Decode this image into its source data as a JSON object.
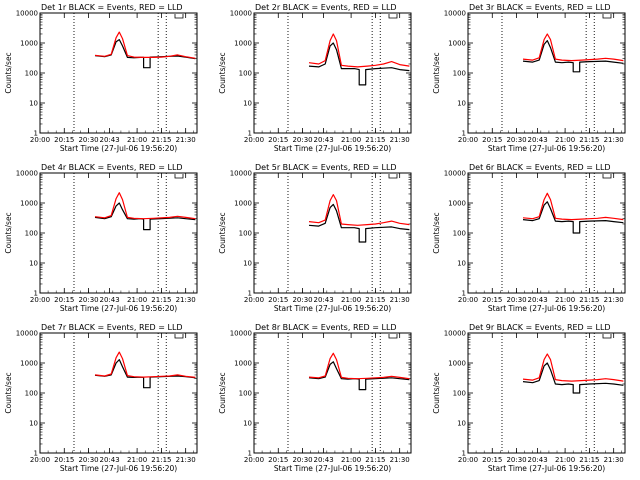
{
  "chart_data": {
    "type": "line",
    "layout": "3x3 grid",
    "xlabel": "Start Time (27-Jul-06 19:56:20)",
    "ylabel": "Counts/sec",
    "y_scale": "log",
    "ylim": [
      1,
      10000
    ],
    "yticks": [
      1,
      10,
      100,
      1000,
      10000
    ],
    "ytick_labels": [
      "1",
      "10",
      "100",
      "1000",
      "10000"
    ],
    "xlim": [
      "20:00",
      "21:37"
    ],
    "xtick_labels": [
      "20:00",
      "20:15",
      "20:30",
      "20:43",
      "21:00",
      "21:15",
      "21:30"
    ],
    "vertical_markers": [
      "20:21",
      "21:13",
      "21:18"
    ],
    "series_colors": {
      "BLACK": "#000000",
      "RED": "#ff0000"
    },
    "panels": [
      {
        "title": "Det 1r BLACK = Events, RED = LLD",
        "series": [
          {
            "color": "BLACK",
            "x": [
              "20:34",
              "20:40",
              "20:44",
              "20:47",
              "20:49",
              "20:51",
              "20:54",
              "20:58",
              "21:02",
              "21:04",
              "21:04",
              "21:08",
              "21:08",
              "21:15",
              "21:25",
              "21:30",
              "21:36"
            ],
            "values": [
              380,
              350,
              400,
              1100,
              1300,
              800,
              330,
              320,
              330,
              330,
              150,
              150,
              340,
              350,
              370,
              340,
              300
            ]
          },
          {
            "color": "RED",
            "x": [
              "20:34",
              "20:40",
              "20:44",
              "20:47",
              "20:49",
              "20:51",
              "20:54",
              "20:58",
              "21:04",
              "21:10",
              "21:15",
              "21:20",
              "21:25",
              "21:30",
              "21:36"
            ],
            "values": [
              390,
              360,
              420,
              1500,
              2300,
              1400,
              380,
              340,
              330,
              330,
              340,
              360,
              400,
              350,
              310
            ]
          }
        ]
      },
      {
        "title": "Det 2r BLACK = Events, RED = LLD",
        "series": [
          {
            "color": "BLACK",
            "x": [
              "20:34",
              "20:40",
              "20:44",
              "20:47",
              "20:49",
              "20:51",
              "20:54",
              "20:58",
              "21:02",
              "21:05",
              "21:05",
              "21:09",
              "21:09",
              "21:15",
              "21:25",
              "21:30",
              "21:36"
            ],
            "values": [
              170,
              160,
              200,
              800,
              1000,
              600,
              140,
              140,
              140,
              130,
              40,
              40,
              130,
              140,
              150,
              130,
              120
            ]
          },
          {
            "color": "RED",
            "x": [
              "20:34",
              "20:40",
              "20:44",
              "20:47",
              "20:49",
              "20:51",
              "20:54",
              "20:58",
              "21:04",
              "21:10",
              "21:15",
              "21:20",
              "21:25",
              "21:30",
              "21:36"
            ],
            "values": [
              220,
              200,
              260,
              1200,
              2000,
              1200,
              180,
              170,
              160,
              170,
              180,
              200,
              240,
              190,
              170
            ]
          }
        ]
      },
      {
        "title": "Det 3r BLACK = Events, RED = LLD",
        "series": [
          {
            "color": "BLACK",
            "x": [
              "20:34",
              "20:40",
              "20:44",
              "20:47",
              "20:49",
              "20:51",
              "20:54",
              "20:58",
              "21:02",
              "21:05",
              "21:05",
              "21:09",
              "21:09",
              "21:15",
              "21:25",
              "21:30",
              "21:36"
            ],
            "values": [
              250,
              230,
              270,
              900,
              1200,
              700,
              230,
              220,
              230,
              220,
              110,
              110,
              230,
              240,
              250,
              230,
              210
            ]
          },
          {
            "color": "RED",
            "x": [
              "20:34",
              "20:40",
              "20:44",
              "20:47",
              "20:49",
              "20:51",
              "20:54",
              "20:58",
              "21:04",
              "21:10",
              "21:15",
              "21:20",
              "21:25",
              "21:30",
              "21:36"
            ],
            "values": [
              290,
              270,
              320,
              1300,
              2000,
              1300,
              290,
              270,
              260,
              270,
              280,
              290,
              310,
              290,
              260
            ]
          }
        ]
      },
      {
        "title": "Det 4r BLACK = Events, RED = LLD",
        "series": [
          {
            "color": "BLACK",
            "x": [
              "20:34",
              "20:40",
              "20:44",
              "20:47",
              "20:49",
              "20:51",
              "20:54",
              "20:58",
              "21:02",
              "21:04",
              "21:04",
              "21:08",
              "21:08",
              "21:15",
              "21:25",
              "21:30",
              "21:36"
            ],
            "values": [
              330,
              300,
              350,
              800,
              1000,
              600,
              300,
              290,
              300,
              290,
              130,
              130,
              290,
              300,
              320,
              300,
              280
            ]
          },
          {
            "color": "RED",
            "x": [
              "20:34",
              "20:40",
              "20:44",
              "20:47",
              "20:49",
              "20:51",
              "20:54",
              "20:58",
              "21:04",
              "21:10",
              "21:15",
              "21:20",
              "21:25",
              "21:30",
              "21:36"
            ],
            "values": [
              350,
              320,
              380,
              1400,
              2200,
              1300,
              330,
              310,
              300,
              310,
              320,
              330,
              360,
              330,
              300
            ]
          }
        ]
      },
      {
        "title": "Det 5r BLACK = Events, RED = LLD",
        "series": [
          {
            "color": "BLACK",
            "x": [
              "20:34",
              "20:40",
              "20:44",
              "20:47",
              "20:49",
              "20:51",
              "20:54",
              "20:58",
              "21:02",
              "21:05",
              "21:05",
              "21:09",
              "21:09",
              "21:15",
              "21:25",
              "21:30",
              "21:36"
            ],
            "values": [
              180,
              170,
              210,
              700,
              900,
              550,
              150,
              150,
              150,
              140,
              50,
              50,
              140,
              150,
              160,
              140,
              130
            ]
          },
          {
            "color": "RED",
            "x": [
              "20:34",
              "20:40",
              "20:44",
              "20:47",
              "20:49",
              "20:51",
              "20:54",
              "20:58",
              "21:04",
              "21:10",
              "21:15",
              "21:20",
              "21:25",
              "21:30",
              "21:36"
            ],
            "values": [
              240,
              220,
              270,
              1200,
              1900,
              1200,
              200,
              190,
              180,
              190,
              200,
              220,
              250,
              210,
              190
            ]
          }
        ]
      },
      {
        "title": "Det 6r BLACK = Events, RED = LLD",
        "series": [
          {
            "color": "BLACK",
            "x": [
              "20:34",
              "20:40",
              "20:44",
              "20:47",
              "20:49",
              "20:51",
              "20:54",
              "20:58",
              "21:02",
              "21:05",
              "21:05",
              "21:09",
              "21:09",
              "21:15",
              "21:25",
              "21:30",
              "21:36"
            ],
            "values": [
              280,
              260,
              300,
              850,
              1100,
              650,
              250,
              240,
              250,
              240,
              100,
              100,
              240,
              250,
              260,
              240,
              220
            ]
          },
          {
            "color": "RED",
            "x": [
              "20:34",
              "20:40",
              "20:44",
              "20:47",
              "20:49",
              "20:51",
              "20:54",
              "20:58",
              "21:04",
              "21:10",
              "21:15",
              "21:20",
              "21:25",
              "21:30",
              "21:36"
            ],
            "values": [
              320,
              300,
              350,
              1300,
              2100,
              1300,
              310,
              290,
              280,
              290,
              300,
              310,
              330,
              310,
              280
            ]
          }
        ]
      },
      {
        "title": "Det 7r BLACK = Events, RED = LLD",
        "series": [
          {
            "color": "BLACK",
            "x": [
              "20:34",
              "20:40",
              "20:44",
              "20:47",
              "20:49",
              "20:51",
              "20:54",
              "20:58",
              "21:02",
              "21:04",
              "21:04",
              "21:08",
              "21:08",
              "21:15",
              "21:25",
              "21:30",
              "21:36"
            ],
            "values": [
              390,
              360,
              400,
              1000,
              1300,
              750,
              340,
              330,
              340,
              330,
              150,
              150,
              340,
              350,
              370,
              350,
              320
            ]
          },
          {
            "color": "RED",
            "x": [
              "20:34",
              "20:40",
              "20:44",
              "20:47",
              "20:49",
              "20:51",
              "20:54",
              "20:58",
              "21:04",
              "21:10",
              "21:15",
              "21:20",
              "21:25",
              "21:30",
              "21:36"
            ],
            "values": [
              400,
              370,
              430,
              1500,
              2300,
              1400,
              380,
              350,
              340,
              350,
              360,
              370,
              400,
              360,
              330
            ]
          }
        ]
      },
      {
        "title": "Det 8r BLACK = Events, RED = LLD",
        "series": [
          {
            "color": "BLACK",
            "x": [
              "20:34",
              "20:40",
              "20:44",
              "20:47",
              "20:49",
              "20:51",
              "20:54",
              "20:58",
              "21:02",
              "21:05",
              "21:05",
              "21:09",
              "21:09",
              "21:15",
              "21:25",
              "21:30",
              "21:36"
            ],
            "values": [
              320,
              300,
              340,
              900,
              1100,
              650,
              300,
              290,
              300,
              290,
              130,
              130,
              290,
              300,
              320,
              300,
              280
            ]
          },
          {
            "color": "RED",
            "x": [
              "20:34",
              "20:40",
              "20:44",
              "20:47",
              "20:49",
              "20:51",
              "20:54",
              "20:58",
              "21:04",
              "21:10",
              "21:15",
              "21:20",
              "21:25",
              "21:30",
              "21:36"
            ],
            "values": [
              340,
              320,
              370,
              1400,
              2100,
              1300,
              330,
              310,
              300,
              310,
              320,
              330,
              360,
              330,
              300
            ]
          }
        ]
      },
      {
        "title": "Det 9r BLACK = Events, RED = LLD",
        "series": [
          {
            "color": "BLACK",
            "x": [
              "20:34",
              "20:40",
              "20:44",
              "20:47",
              "20:49",
              "20:51",
              "20:54",
              "20:58",
              "21:02",
              "21:05",
              "21:05",
              "21:09",
              "21:09",
              "21:15",
              "21:25",
              "21:30",
              "21:36"
            ],
            "values": [
              240,
              220,
              260,
              800,
              1000,
              600,
              200,
              190,
              200,
              190,
              100,
              100,
              190,
              200,
              210,
              200,
              180
            ]
          },
          {
            "color": "RED",
            "x": [
              "20:34",
              "20:40",
              "20:44",
              "20:47",
              "20:49",
              "20:51",
              "20:54",
              "20:58",
              "21:04",
              "21:10",
              "21:15",
              "21:20",
              "21:25",
              "21:30",
              "21:36"
            ],
            "values": [
              290,
              270,
              320,
              1300,
              2000,
              1300,
              280,
              260,
              250,
              260,
              270,
              280,
              300,
              280,
              250
            ]
          }
        ]
      }
    ]
  }
}
